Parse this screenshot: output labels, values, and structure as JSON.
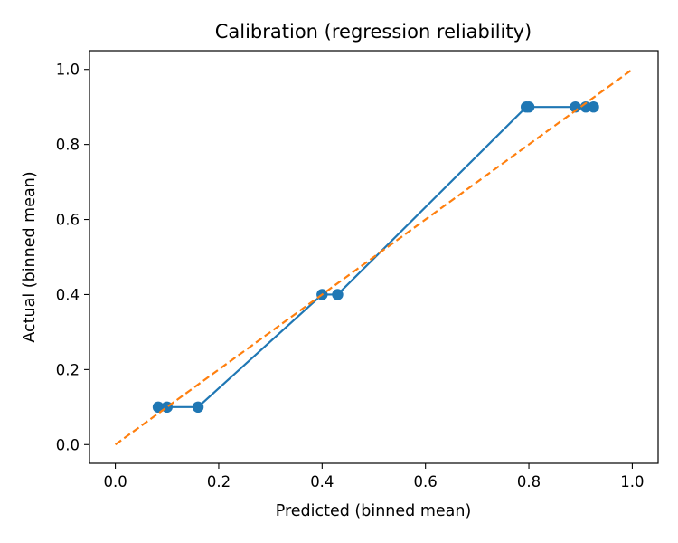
{
  "chart_data": {
    "type": "line",
    "title": "Calibration (regression reliability)",
    "xlabel": "Predicted (binned mean)",
    "ylabel": "Actual (binned mean)",
    "xlim": [
      -0.05,
      1.05
    ],
    "ylim": [
      -0.05,
      1.05
    ],
    "xticks": [
      0.0,
      0.2,
      0.4,
      0.6,
      0.8,
      1.0
    ],
    "yticks": [
      0.0,
      0.2,
      0.4,
      0.6,
      0.8,
      1.0
    ],
    "xtick_labels": [
      "0.0",
      "0.2",
      "0.4",
      "0.6",
      "0.8",
      "1.0"
    ],
    "ytick_labels": [
      "0.0",
      "0.2",
      "0.4",
      "0.6",
      "0.8",
      "1.0"
    ],
    "grid": false,
    "series": [
      {
        "color": "#1f77b4",
        "style": "solid",
        "marker": "circle",
        "x": [
          0.083,
          0.1,
          0.16,
          0.4,
          0.43,
          0.795,
          0.8,
          0.89,
          0.91,
          0.925
        ],
        "y": [
          0.1,
          0.1,
          0.1,
          0.4,
          0.4,
          0.9,
          0.9,
          0.9,
          0.9,
          0.9
        ]
      },
      {
        "color": "#ff7f0e",
        "style": "dashed",
        "marker": "none",
        "x": [
          0.0,
          1.0
        ],
        "y": [
          0.0,
          1.0
        ]
      }
    ]
  }
}
